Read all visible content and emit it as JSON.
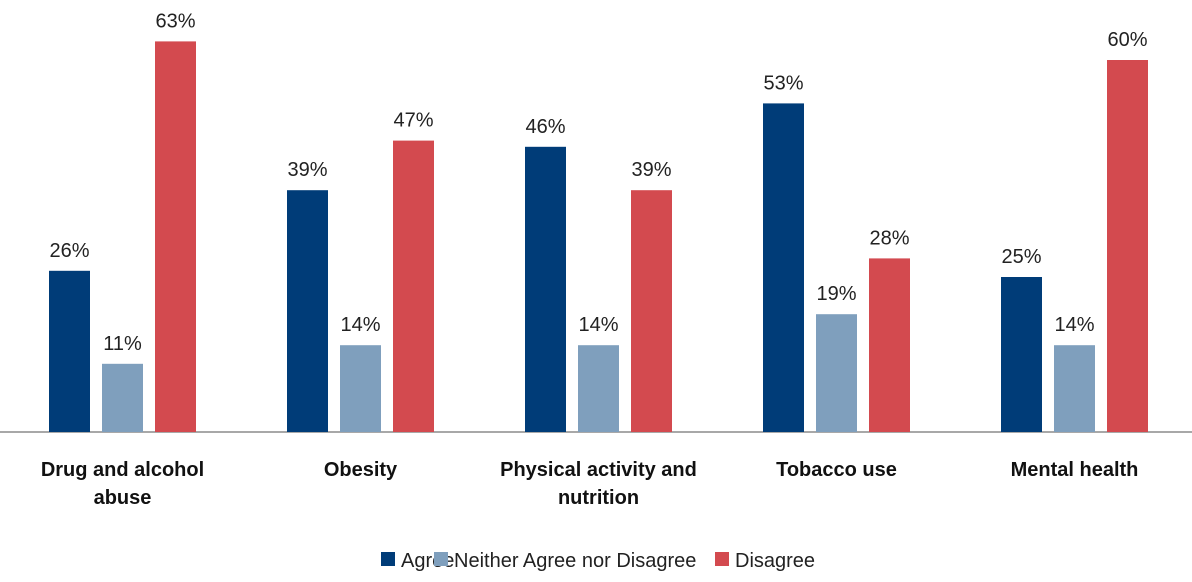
{
  "chart_data": {
    "type": "bar",
    "categories": [
      [
        "Drug and alcohol",
        "abuse"
      ],
      [
        "Obesity"
      ],
      [
        "Physical activity and",
        "nutrition"
      ],
      [
        "Tobacco use"
      ],
      [
        "Mental health"
      ]
    ],
    "series": [
      {
        "name": "Agree",
        "values": [
          26,
          39,
          46,
          53,
          25
        ],
        "labels": [
          "26%",
          "39%",
          "46%",
          "53%",
          "25%"
        ],
        "color": "#003c78"
      },
      {
        "name": "Neither Agree nor Disagree",
        "values": [
          11,
          14,
          14,
          19,
          14
        ],
        "labels": [
          "11%",
          "14%",
          "14%",
          "19%",
          "14%"
        ],
        "color": "#7f9fbd"
      },
      {
        "name": "Disagree",
        "values": [
          63,
          47,
          39,
          28,
          60
        ],
        "labels": [
          "63%",
          "47%",
          "39%",
          "28%",
          "60%"
        ],
        "color": "#d34a4f"
      }
    ],
    "ylim": [
      0,
      70
    ],
    "grid": false,
    "legend_position": "bottom",
    "axis_color": "#8c8c8c"
  }
}
